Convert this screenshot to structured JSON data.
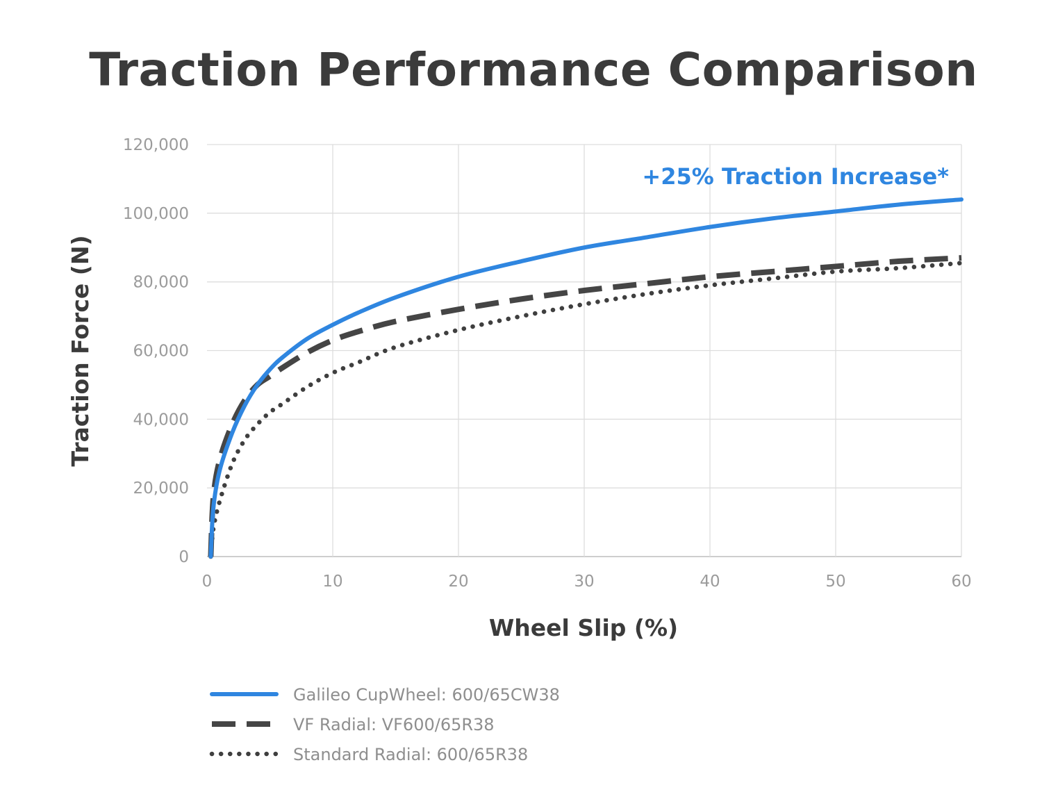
{
  "chart_data": {
    "type": "line",
    "title": "Traction Performance Comparison",
    "xlabel": "Wheel Slip (%)",
    "ylabel": "Traction Force (N)",
    "xlim": [
      0,
      60
    ],
    "ylim": [
      0,
      120000
    ],
    "xticks": [
      0,
      10,
      20,
      30,
      40,
      50,
      60
    ],
    "yticks": [
      0,
      20000,
      40000,
      60000,
      80000,
      100000,
      120000
    ],
    "xtick_labels": [
      "0",
      "10",
      "20",
      "30",
      "40",
      "50",
      "60"
    ],
    "ytick_labels": [
      "0",
      "20,000",
      "40,000",
      "60,000",
      "80,000",
      "100,000",
      "120,000"
    ],
    "grid": true,
    "legend_position": "bottom",
    "annotation": "+25% Traction Increase*",
    "series": [
      {
        "name": "Galileo CupWheel: 600/65CW38",
        "style": "solid",
        "color": "#2f86e0",
        "x": [
          0.3,
          0.5,
          1,
          2,
          3,
          4,
          5,
          6,
          8,
          10,
          12,
          15,
          20,
          25,
          30,
          35,
          40,
          45,
          50,
          55,
          60
        ],
        "y": [
          0,
          14000,
          25000,
          36000,
          44000,
          50000,
          54500,
          58000,
          63500,
          67500,
          71000,
          75500,
          81500,
          86000,
          90000,
          93000,
          96000,
          98500,
          100500,
          102500,
          104000
        ]
      },
      {
        "name": "VF Radial: VF600/65R38",
        "style": "dashed",
        "color": "#454545",
        "x": [
          0.3,
          0.5,
          1,
          2,
          3,
          4,
          5,
          6,
          8,
          10,
          12,
          15,
          20,
          25,
          30,
          35,
          40,
          45,
          50,
          55,
          60
        ],
        "y": [
          0,
          17000,
          28000,
          38500,
          45500,
          50000,
          52500,
          55000,
          59500,
          63000,
          65500,
          68500,
          72000,
          75000,
          77500,
          79500,
          81500,
          83000,
          84500,
          86000,
          87000
        ]
      },
      {
        "name": "Standard Radial: 600/65R38",
        "style": "dotted",
        "color": "#3f3f3f",
        "x": [
          0.3,
          0.5,
          1,
          2,
          3,
          4,
          5,
          6,
          8,
          10,
          12,
          15,
          20,
          25,
          30,
          35,
          40,
          45,
          50,
          55,
          60
        ],
        "y": [
          0,
          8000,
          16000,
          27000,
          34000,
          38500,
          42000,
          44500,
          49500,
          53500,
          56500,
          61000,
          66000,
          70000,
          73500,
          76500,
          79000,
          81000,
          83000,
          84000,
          85500
        ]
      }
    ]
  }
}
